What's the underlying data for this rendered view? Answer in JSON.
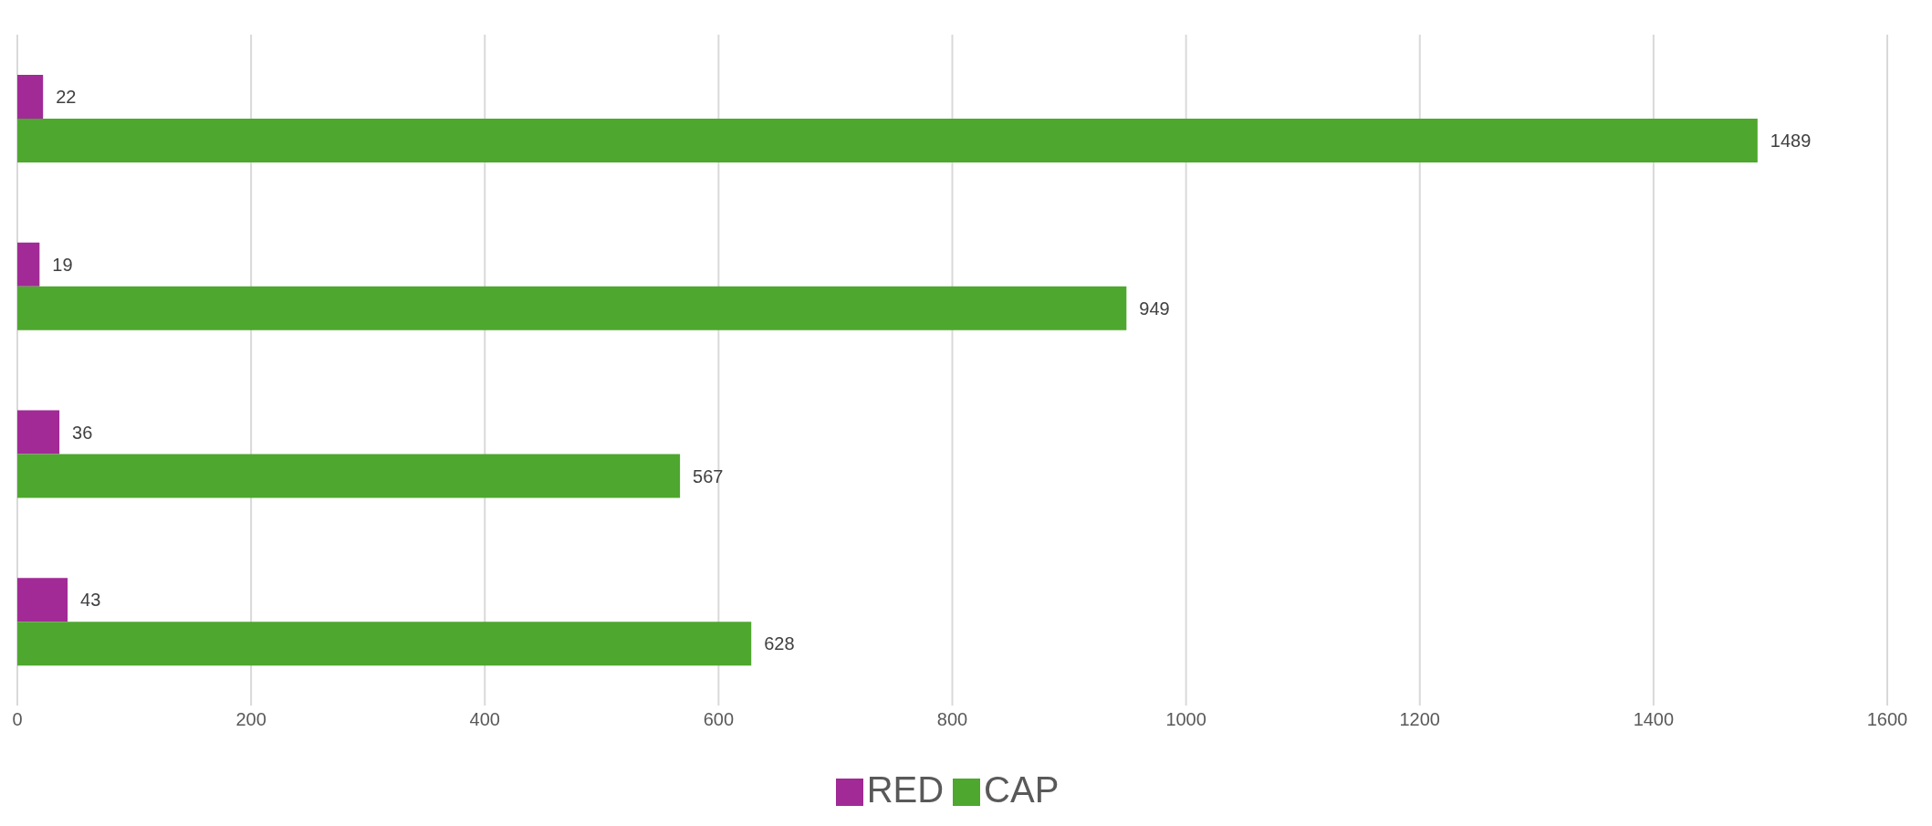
{
  "chart_data": {
    "type": "bar",
    "orientation": "horizontal",
    "categories": [
      null,
      null,
      null,
      null
    ],
    "series": [
      {
        "name": "RED",
        "color": "#a12a96",
        "values": [
          22,
          19,
          36,
          43
        ]
      },
      {
        "name": "CAP",
        "color": "#4ea72e",
        "values": [
          1489,
          949,
          567,
          628
        ]
      }
    ],
    "xlim": [
      0,
      1600
    ],
    "xticks": [
      0,
      200,
      400,
      600,
      800,
      1000,
      1200,
      1400,
      1600
    ],
    "grid": "x",
    "legend": "bottom",
    "data_labels": true
  }
}
